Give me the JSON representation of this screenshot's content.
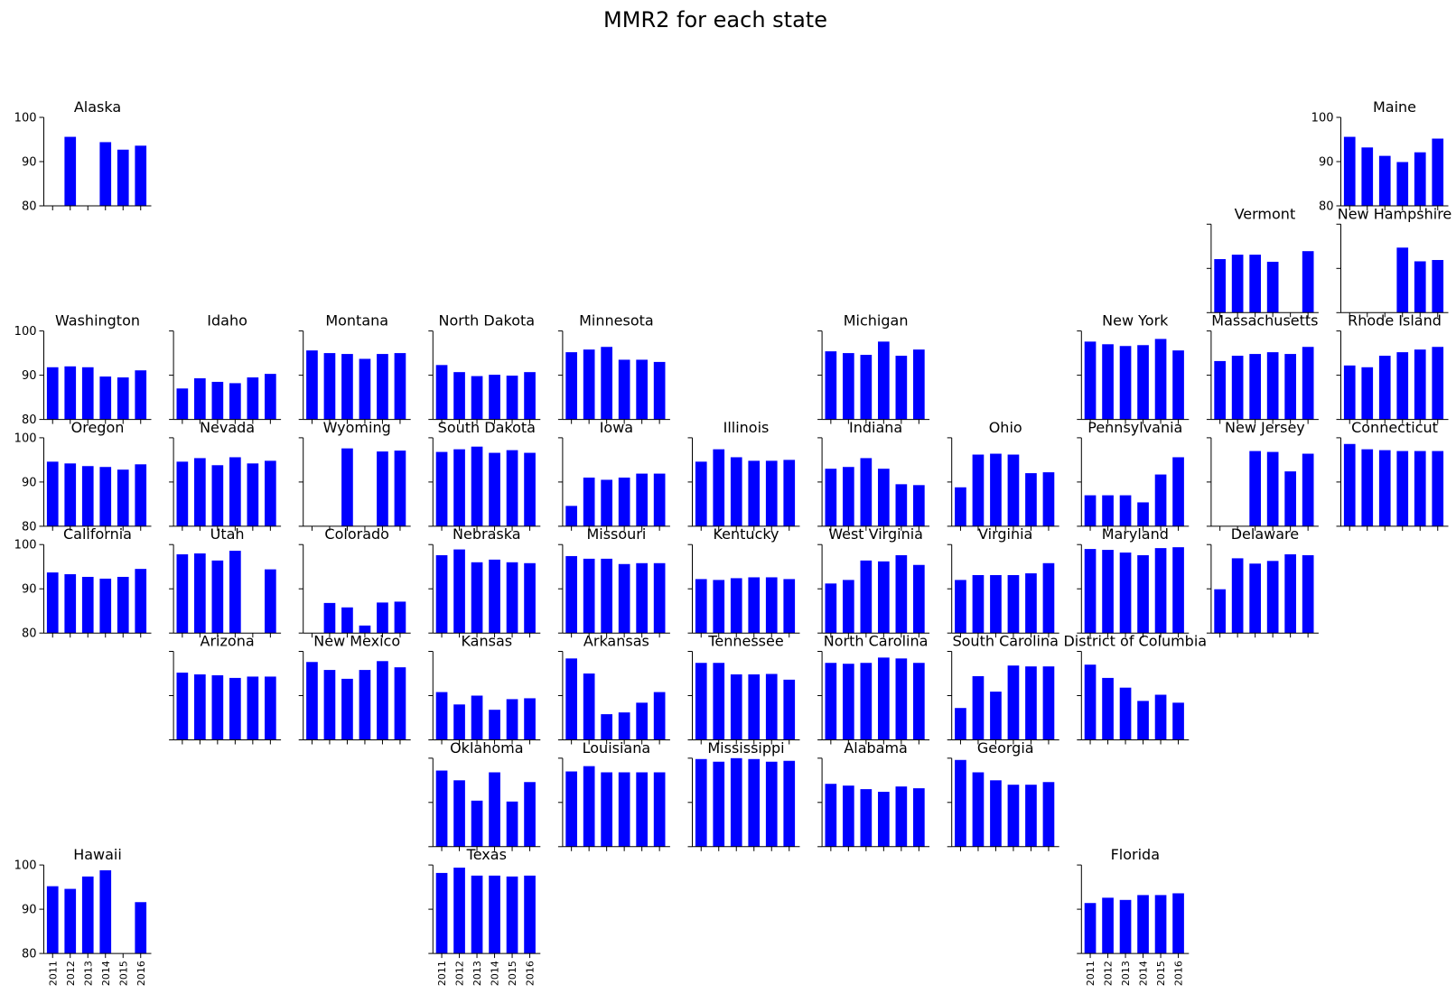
{
  "chart_data": {
    "type": "bar",
    "title": "MMR2 for each state",
    "categories": [
      "2011",
      "2012",
      "2013",
      "2014",
      "2015",
      "2016"
    ],
    "ylim": [
      80,
      100
    ],
    "y_ticks": [
      "80",
      "90",
      "100"
    ],
    "bar_color": "#0000ff",
    "grid": false,
    "panels": [
      {
        "name": "Alaska",
        "row": 0,
        "col": 0,
        "show_y": true,
        "show_x": false,
        "values": [
          null,
          95.6,
          null,
          94.4,
          92.7,
          93.6
        ]
      },
      {
        "name": "Maine",
        "row": 0,
        "col": 10,
        "show_y": true,
        "show_x": false,
        "values": [
          95.6,
          93.2,
          91.3,
          89.9,
          92.1,
          95.2
        ]
      },
      {
        "name": "Vermont",
        "row": 1,
        "col": 9,
        "show_y": false,
        "show_x": false,
        "values": [
          92.1,
          93.1,
          93.1,
          91.5,
          null,
          93.9
        ]
      },
      {
        "name": "New Hampshire",
        "row": 1,
        "col": 10,
        "show_y": false,
        "show_x": false,
        "values": [
          null,
          null,
          null,
          94.7,
          91.6,
          91.9
        ]
      },
      {
        "name": "Washington",
        "row": 2,
        "col": 0,
        "show_y": true,
        "show_x": false,
        "values": [
          91.8,
          92.0,
          91.8,
          89.7,
          89.5,
          91.1
        ]
      },
      {
        "name": "Idaho",
        "row": 2,
        "col": 1,
        "show_y": false,
        "show_x": false,
        "values": [
          87.0,
          89.3,
          88.5,
          88.2,
          89.5,
          90.3
        ]
      },
      {
        "name": "Montana",
        "row": 2,
        "col": 2,
        "show_y": false,
        "show_x": false,
        "values": [
          95.6,
          95.0,
          94.8,
          93.7,
          94.8,
          95.0
        ]
      },
      {
        "name": "North Dakota",
        "row": 2,
        "col": 3,
        "show_y": false,
        "show_x": false,
        "values": [
          92.3,
          90.7,
          89.8,
          90.1,
          89.9,
          90.7
        ]
      },
      {
        "name": "Minnesota",
        "row": 2,
        "col": 4,
        "show_y": false,
        "show_x": false,
        "values": [
          95.2,
          95.8,
          96.4,
          93.5,
          93.5,
          93.0
        ]
      },
      {
        "name": "Michigan",
        "row": 2,
        "col": 6,
        "show_y": false,
        "show_x": false,
        "values": [
          95.4,
          95.0,
          94.6,
          97.6,
          94.4,
          95.8
        ]
      },
      {
        "name": "New York",
        "row": 2,
        "col": 8,
        "show_y": false,
        "show_x": false,
        "values": [
          97.6,
          97.0,
          96.6,
          96.8,
          98.2,
          95.6
        ]
      },
      {
        "name": "Massachusetts",
        "row": 2,
        "col": 9,
        "show_y": false,
        "show_x": false,
        "values": [
          93.2,
          94.4,
          94.8,
          95.2,
          94.8,
          96.4
        ]
      },
      {
        "name": "Rhode Island",
        "row": 2,
        "col": 10,
        "show_y": false,
        "show_x": false,
        "values": [
          92.2,
          91.8,
          94.4,
          95.2,
          95.8,
          96.4
        ]
      },
      {
        "name": "Oregon",
        "row": 3,
        "col": 0,
        "show_y": true,
        "show_x": false,
        "values": [
          94.6,
          94.2,
          93.6,
          93.4,
          92.8,
          94.0
        ]
      },
      {
        "name": "Nevada",
        "row": 3,
        "col": 1,
        "show_y": false,
        "show_x": false,
        "values": [
          94.6,
          95.4,
          93.8,
          95.6,
          94.2,
          94.8
        ]
      },
      {
        "name": "Wyoming",
        "row": 3,
        "col": 2,
        "show_y": false,
        "show_x": false,
        "values": [
          null,
          null,
          97.6,
          null,
          96.9,
          97.1
        ]
      },
      {
        "name": "South Dakota",
        "row": 3,
        "col": 3,
        "show_y": false,
        "show_x": false,
        "values": [
          96.8,
          97.4,
          98.0,
          96.6,
          97.2,
          96.6
        ]
      },
      {
        "name": "Iowa",
        "row": 3,
        "col": 4,
        "show_y": false,
        "show_x": false,
        "values": [
          84.6,
          91.0,
          90.5,
          91.0,
          91.9,
          91.9
        ]
      },
      {
        "name": "Illinois",
        "row": 3,
        "col": 5,
        "show_y": false,
        "show_x": false,
        "values": [
          94.6,
          97.4,
          95.6,
          94.8,
          94.8,
          95.0
        ]
      },
      {
        "name": "Indiana",
        "row": 3,
        "col": 6,
        "show_y": false,
        "show_x": false,
        "values": [
          93.0,
          93.4,
          95.4,
          93.0,
          89.5,
          89.3
        ]
      },
      {
        "name": "Ohio",
        "row": 3,
        "col": 7,
        "show_y": false,
        "show_x": false,
        "values": [
          88.8,
          96.2,
          96.4,
          96.2,
          92.0,
          92.2
        ]
      },
      {
        "name": "Pennsylvania",
        "row": 3,
        "col": 8,
        "show_y": false,
        "show_x": false,
        "values": [
          87.0,
          87.0,
          87.0,
          85.4,
          91.7,
          95.6
        ]
      },
      {
        "name": "New Jersey",
        "row": 3,
        "col": 9,
        "show_y": false,
        "show_x": false,
        "values": [
          null,
          null,
          97.0,
          96.8,
          92.4,
          96.4
        ]
      },
      {
        "name": "Connecticut",
        "row": 3,
        "col": 10,
        "show_y": false,
        "show_x": false,
        "values": [
          98.6,
          97.4,
          97.2,
          97.0,
          97.0,
          97.0
        ]
      },
      {
        "name": "California",
        "row": 4,
        "col": 0,
        "show_y": true,
        "show_x": false,
        "values": [
          93.7,
          93.3,
          92.7,
          92.3,
          92.7,
          94.5
        ]
      },
      {
        "name": "Utah",
        "row": 4,
        "col": 1,
        "show_y": false,
        "show_x": false,
        "values": [
          97.8,
          98.0,
          96.4,
          98.6,
          null,
          94.4
        ]
      },
      {
        "name": "Colorado",
        "row": 4,
        "col": 2,
        "show_y": false,
        "show_x": false,
        "values": [
          null,
          86.8,
          85.8,
          81.7,
          86.9,
          87.1
        ]
      },
      {
        "name": "Nebraska",
        "row": 4,
        "col": 3,
        "show_y": false,
        "show_x": false,
        "values": [
          97.6,
          98.9,
          96.0,
          96.6,
          96.0,
          95.8
        ]
      },
      {
        "name": "Missouri",
        "row": 4,
        "col": 4,
        "show_y": false,
        "show_x": false,
        "values": [
          97.4,
          96.8,
          96.8,
          95.6,
          95.8,
          95.8
        ]
      },
      {
        "name": "Kentucky",
        "row": 4,
        "col": 5,
        "show_y": false,
        "show_x": false,
        "values": [
          92.2,
          92.0,
          92.4,
          92.6,
          92.6,
          92.2
        ]
      },
      {
        "name": "West Virginia",
        "row": 4,
        "col": 6,
        "show_y": false,
        "show_x": false,
        "values": [
          91.2,
          92.0,
          96.4,
          96.2,
          97.6,
          95.4
        ]
      },
      {
        "name": "Virginia",
        "row": 4,
        "col": 7,
        "show_y": false,
        "show_x": false,
        "values": [
          92.0,
          93.1,
          93.1,
          93.1,
          93.5,
          95.8
        ]
      },
      {
        "name": "Maryland",
        "row": 4,
        "col": 8,
        "show_y": false,
        "show_x": false,
        "values": [
          99.0,
          98.8,
          98.2,
          97.6,
          99.2,
          99.4
        ]
      },
      {
        "name": "Delaware",
        "row": 4,
        "col": 9,
        "show_y": false,
        "show_x": false,
        "values": [
          89.9,
          96.9,
          95.7,
          96.3,
          97.8,
          97.6
        ]
      },
      {
        "name": "Arizona",
        "row": 5,
        "col": 1,
        "show_y": false,
        "show_x": false,
        "values": [
          95.2,
          94.8,
          94.6,
          94.0,
          94.3,
          94.3
        ]
      },
      {
        "name": "New Mexico",
        "row": 5,
        "col": 2,
        "show_y": false,
        "show_x": false,
        "values": [
          97.6,
          95.8,
          93.8,
          95.8,
          97.8,
          96.4
        ]
      },
      {
        "name": "Kansas",
        "row": 5,
        "col": 3,
        "show_y": false,
        "show_x": false,
        "values": [
          90.8,
          88.0,
          90.0,
          86.8,
          89.2,
          89.4
        ]
      },
      {
        "name": "Arkansas",
        "row": 5,
        "col": 4,
        "show_y": false,
        "show_x": false,
        "values": [
          98.4,
          95.0,
          85.8,
          86.2,
          88.4,
          90.8
        ]
      },
      {
        "name": "Tennessee",
        "row": 5,
        "col": 5,
        "show_y": false,
        "show_x": false,
        "values": [
          97.4,
          97.4,
          94.8,
          94.8,
          94.9,
          93.6
        ]
      },
      {
        "name": "North Carolina",
        "row": 5,
        "col": 6,
        "show_y": false,
        "show_x": false,
        "values": [
          97.4,
          97.2,
          97.4,
          98.6,
          98.4,
          97.4
        ]
      },
      {
        "name": "South Carolina",
        "row": 5,
        "col": 7,
        "show_y": false,
        "show_x": false,
        "values": [
          87.2,
          94.4,
          90.9,
          96.8,
          96.6,
          96.6
        ]
      },
      {
        "name": "District of Columbia",
        "row": 5,
        "col": 8,
        "show_y": false,
        "show_x": false,
        "values": [
          97.0,
          94.0,
          91.8,
          88.8,
          90.2,
          88.4
        ]
      },
      {
        "name": "Oklahoma",
        "row": 6,
        "col": 3,
        "show_y": false,
        "show_x": false,
        "values": [
          97.2,
          95.0,
          90.4,
          96.8,
          90.2,
          94.6
        ]
      },
      {
        "name": "Louisiana",
        "row": 6,
        "col": 4,
        "show_y": false,
        "show_x": false,
        "values": [
          97.0,
          98.2,
          96.8,
          96.8,
          96.8,
          96.8
        ]
      },
      {
        "name": "Mississippi",
        "row": 6,
        "col": 5,
        "show_y": false,
        "show_x": false,
        "values": [
          99.8,
          99.2,
          100.0,
          99.8,
          99.2,
          99.4
        ]
      },
      {
        "name": "Alabama",
        "row": 6,
        "col": 6,
        "show_y": false,
        "show_x": false,
        "values": [
          94.2,
          93.8,
          93.0,
          92.4,
          93.6,
          93.2
        ]
      },
      {
        "name": "Georgia",
        "row": 6,
        "col": 7,
        "show_y": false,
        "show_x": false,
        "values": [
          99.6,
          96.8,
          95.0,
          94.0,
          94.0,
          94.6
        ]
      },
      {
        "name": "Hawaii",
        "row": 7,
        "col": 0,
        "show_y": true,
        "show_x": true,
        "values": [
          95.2,
          94.6,
          97.4,
          98.8,
          null,
          91.6
        ]
      },
      {
        "name": "Texas",
        "row": 7,
        "col": 3,
        "show_y": false,
        "show_x": true,
        "values": [
          98.2,
          99.4,
          97.6,
          97.6,
          97.4,
          97.6
        ]
      },
      {
        "name": "Florida",
        "row": 7,
        "col": 8,
        "show_y": false,
        "show_x": true,
        "values": [
          91.4,
          92.6,
          92.1,
          93.2,
          93.2,
          93.6
        ]
      }
    ]
  }
}
